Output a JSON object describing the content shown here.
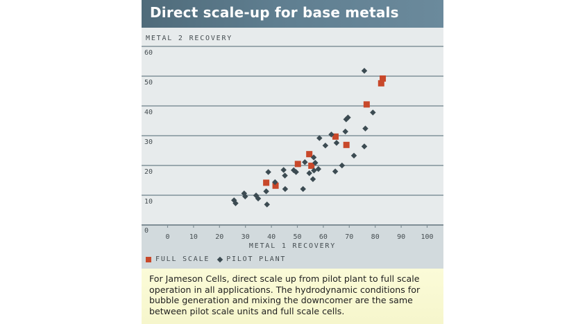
{
  "header": {
    "title": "Direct scale-up for base metals"
  },
  "caption": "For Jameson Cells, direct scale up from pilot plant to full scale operation in all applications. The hydrodynamic conditions for bubble generation and mixing the downcomer are the same between pilot scale units and full scale cells.",
  "colors": {
    "full_scale": "#c8482a",
    "pilot_plant": "#3c4b52",
    "gridline": "#9aa8ae",
    "header": "#5f7e90"
  },
  "chart_data": {
    "type": "scatter",
    "title": "Direct scale-up for base metals",
    "xlabel": "METAL 1 RECOVERY",
    "ylabel": "METAL 2 RECOVERY",
    "xlim": [
      0,
      100
    ],
    "ylim": [
      0,
      60
    ],
    "origin_label": "0",
    "x_ticks": [
      0,
      10,
      20,
      30,
      40,
      50,
      60,
      70,
      80,
      90,
      100
    ],
    "y_ticks": [
      10,
      20,
      30,
      40,
      50,
      60
    ],
    "grid": "horizontal",
    "legend_position": "bottom-left",
    "legend": [
      "FULL SCALE",
      "PILOT PLANT"
    ],
    "series": [
      {
        "name": "FULL SCALE",
        "marker": "square",
        "points": [
          [
            38.0,
            14.2
          ],
          [
            41.6,
            13.2
          ],
          [
            50.2,
            20.5
          ],
          [
            54.6,
            23.8
          ],
          [
            55.4,
            19.9
          ],
          [
            64.7,
            29.7
          ],
          [
            68.9,
            26.9
          ],
          [
            76.7,
            40.5
          ],
          [
            82.3,
            47.6
          ],
          [
            82.9,
            49.2
          ]
        ]
      },
      {
        "name": "PILOT PLANT",
        "marker": "diamond",
        "points": [
          [
            25.6,
            8.3
          ],
          [
            26.2,
            7.3
          ],
          [
            29.5,
            10.6
          ],
          [
            29.9,
            9.6
          ],
          [
            34.1,
            9.9
          ],
          [
            34.9,
            8.9
          ],
          [
            38.0,
            11.3
          ],
          [
            38.3,
            6.9
          ],
          [
            38.8,
            17.8
          ],
          [
            41.4,
            14.4
          ],
          [
            44.7,
            18.5
          ],
          [
            45.2,
            16.6
          ],
          [
            45.3,
            12.1
          ],
          [
            48.6,
            18.4
          ],
          [
            49.5,
            17.8
          ],
          [
            52.2,
            12.1
          ],
          [
            52.9,
            21.1
          ],
          [
            54.6,
            17.4
          ],
          [
            56.0,
            15.4
          ],
          [
            56.3,
            22.7
          ],
          [
            56.4,
            18.3
          ],
          [
            56.9,
            20.9
          ],
          [
            58.1,
            18.8
          ],
          [
            58.5,
            29.2
          ],
          [
            60.8,
            26.7
          ],
          [
            63.1,
            30.4
          ],
          [
            64.6,
            18.0
          ],
          [
            65.1,
            27.6
          ],
          [
            67.2,
            20.0
          ],
          [
            68.5,
            31.4
          ],
          [
            68.8,
            35.5
          ],
          [
            69.5,
            36.1
          ],
          [
            71.8,
            23.3
          ],
          [
            75.8,
            51.8
          ],
          [
            75.8,
            26.4
          ],
          [
            76.2,
            32.4
          ],
          [
            79.1,
            37.8
          ]
        ]
      }
    ]
  }
}
